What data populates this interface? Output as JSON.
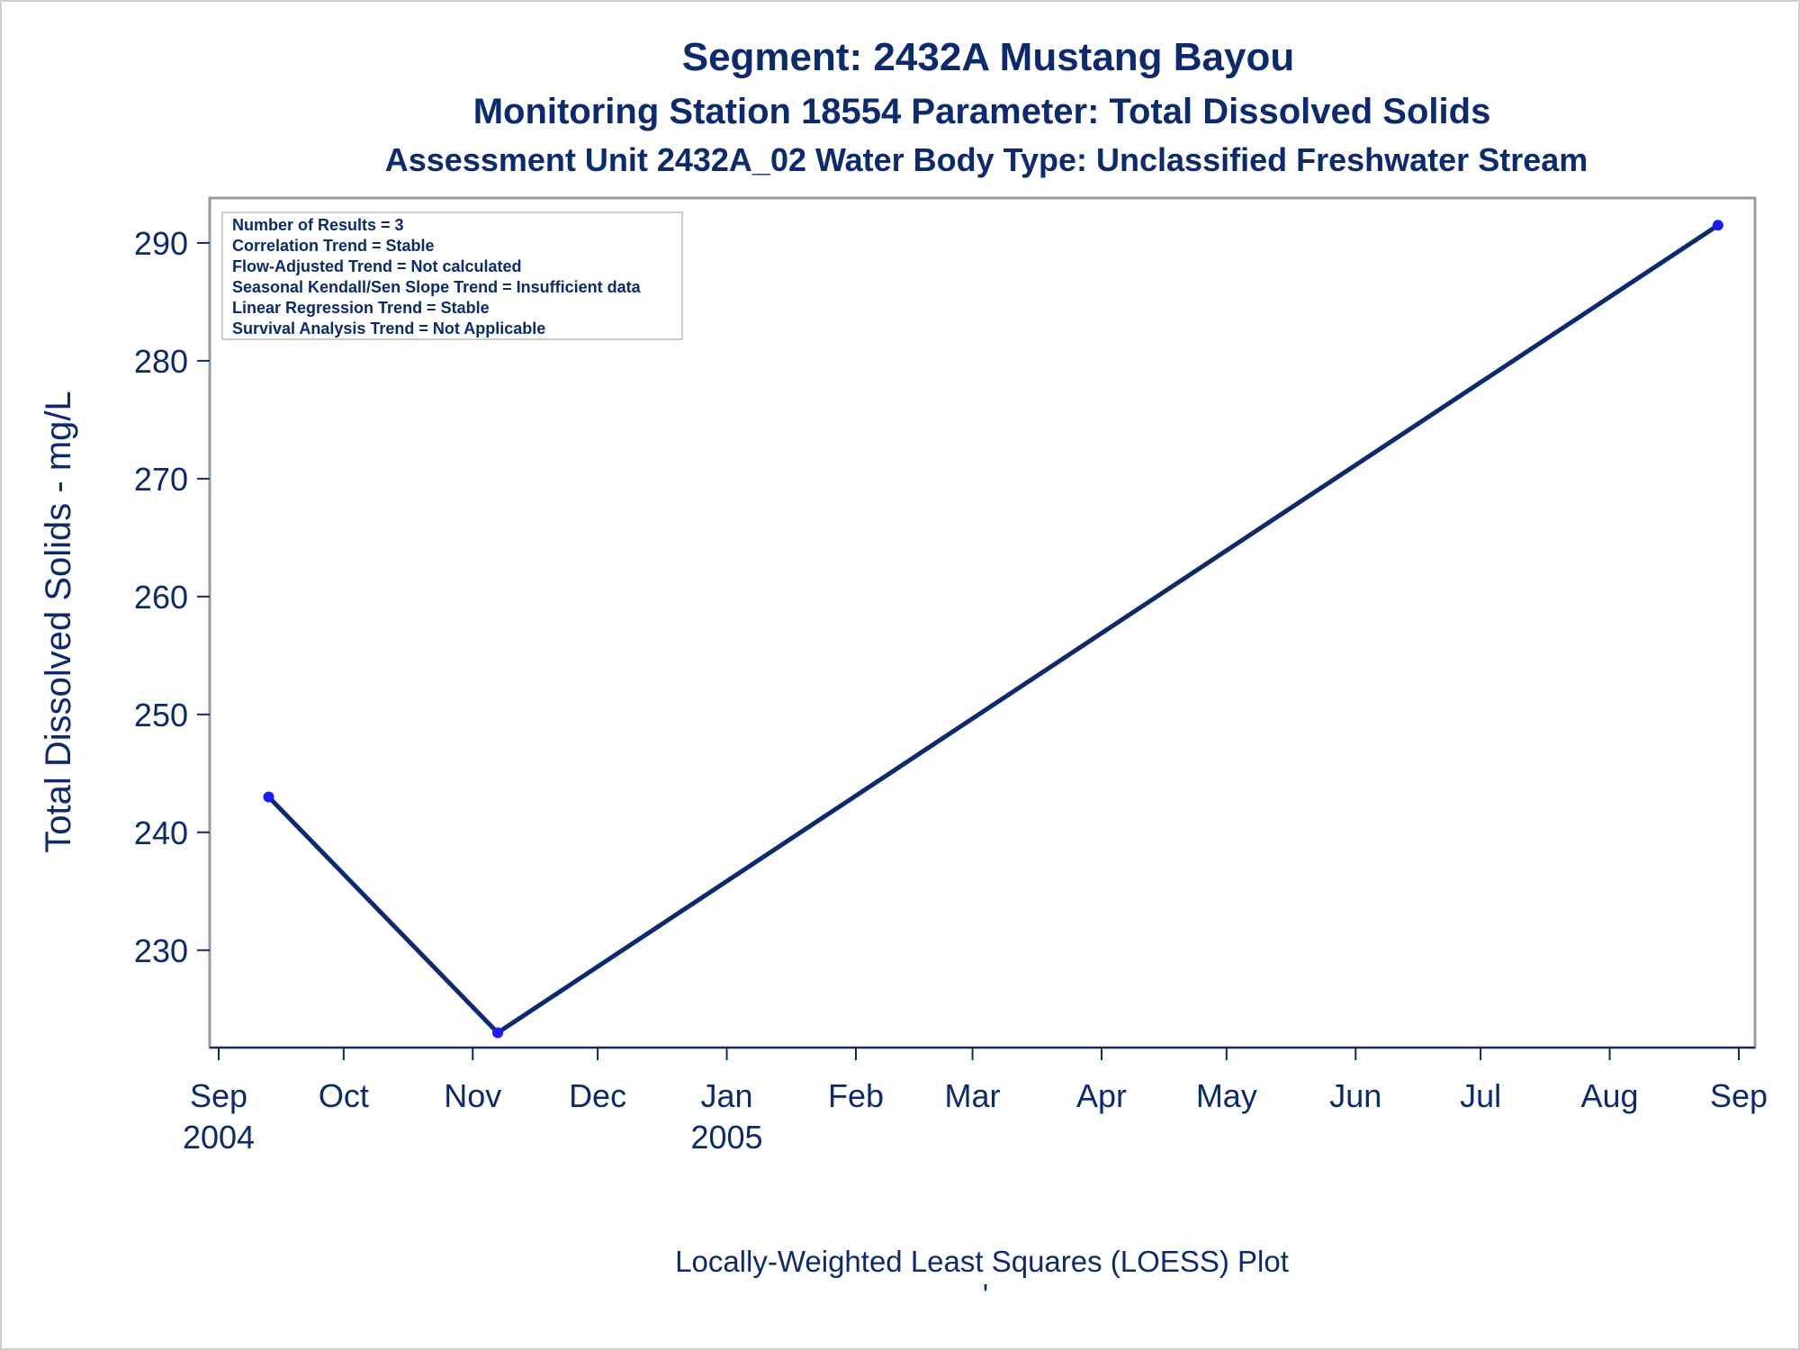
{
  "titles": {
    "line1": "Segment: 2432A  Mustang Bayou",
    "line2": "Monitoring Station 18554 Parameter: Total Dissolved Solids",
    "line3": "Assessment Unit 2432A_02   Water Body Type: Unclassified Freshwater Stream"
  },
  "stats_box": {
    "lines": [
      "Number of Results = 3",
      "Correlation Trend = Stable",
      "Flow-Adjusted Trend = Not calculated",
      "Seasonal Kendall/Sen Slope Trend = Insufficient data",
      "Linear Regression Trend = Stable",
      "Survival Analysis Trend = Not Applicable"
    ]
  },
  "footnote": "Locally-Weighted Least Squares (LOESS) Plot",
  "footnote_mark": "'",
  "colors": {
    "text": "#0b2a6f",
    "line": "#0b2a6f",
    "marker": "#1a1aff",
    "frame": "#9a9a9a"
  },
  "chart_data": {
    "type": "line",
    "xlabel": "",
    "ylabel": "Total Dissolved Solids - mg/L",
    "xlim": [
      "2004-09-01",
      "2005-09-01"
    ],
    "ylim": [
      222.5,
      293.2
    ],
    "x_ticks": [
      {
        "date": "2004-09-01",
        "label": "Sep",
        "year": "2004"
      },
      {
        "date": "2004-10-01",
        "label": "Oct",
        "year": ""
      },
      {
        "date": "2004-11-01",
        "label": "Nov",
        "year": ""
      },
      {
        "date": "2004-12-01",
        "label": "Dec",
        "year": ""
      },
      {
        "date": "2005-01-01",
        "label": "Jan",
        "year": "2005"
      },
      {
        "date": "2005-02-01",
        "label": "Feb",
        "year": ""
      },
      {
        "date": "2005-03-01",
        "label": "Mar",
        "year": ""
      },
      {
        "date": "2005-04-01",
        "label": "Apr",
        "year": ""
      },
      {
        "date": "2005-05-01",
        "label": "May",
        "year": ""
      },
      {
        "date": "2005-06-01",
        "label": "Jun",
        "year": ""
      },
      {
        "date": "2005-07-01",
        "label": "Jul",
        "year": ""
      },
      {
        "date": "2005-08-01",
        "label": "Aug",
        "year": ""
      },
      {
        "date": "2005-09-01",
        "label": "Sep",
        "year": ""
      }
    ],
    "y_ticks": [
      230,
      240,
      250,
      260,
      270,
      280,
      290
    ],
    "series": [
      {
        "points": [
          {
            "x": "2004-09-13",
            "y": 243
          },
          {
            "x": "2004-11-07",
            "y": 223
          },
          {
            "x": "2005-08-27",
            "y": 291.5
          }
        ]
      }
    ],
    "grid": false,
    "legend": "none"
  }
}
